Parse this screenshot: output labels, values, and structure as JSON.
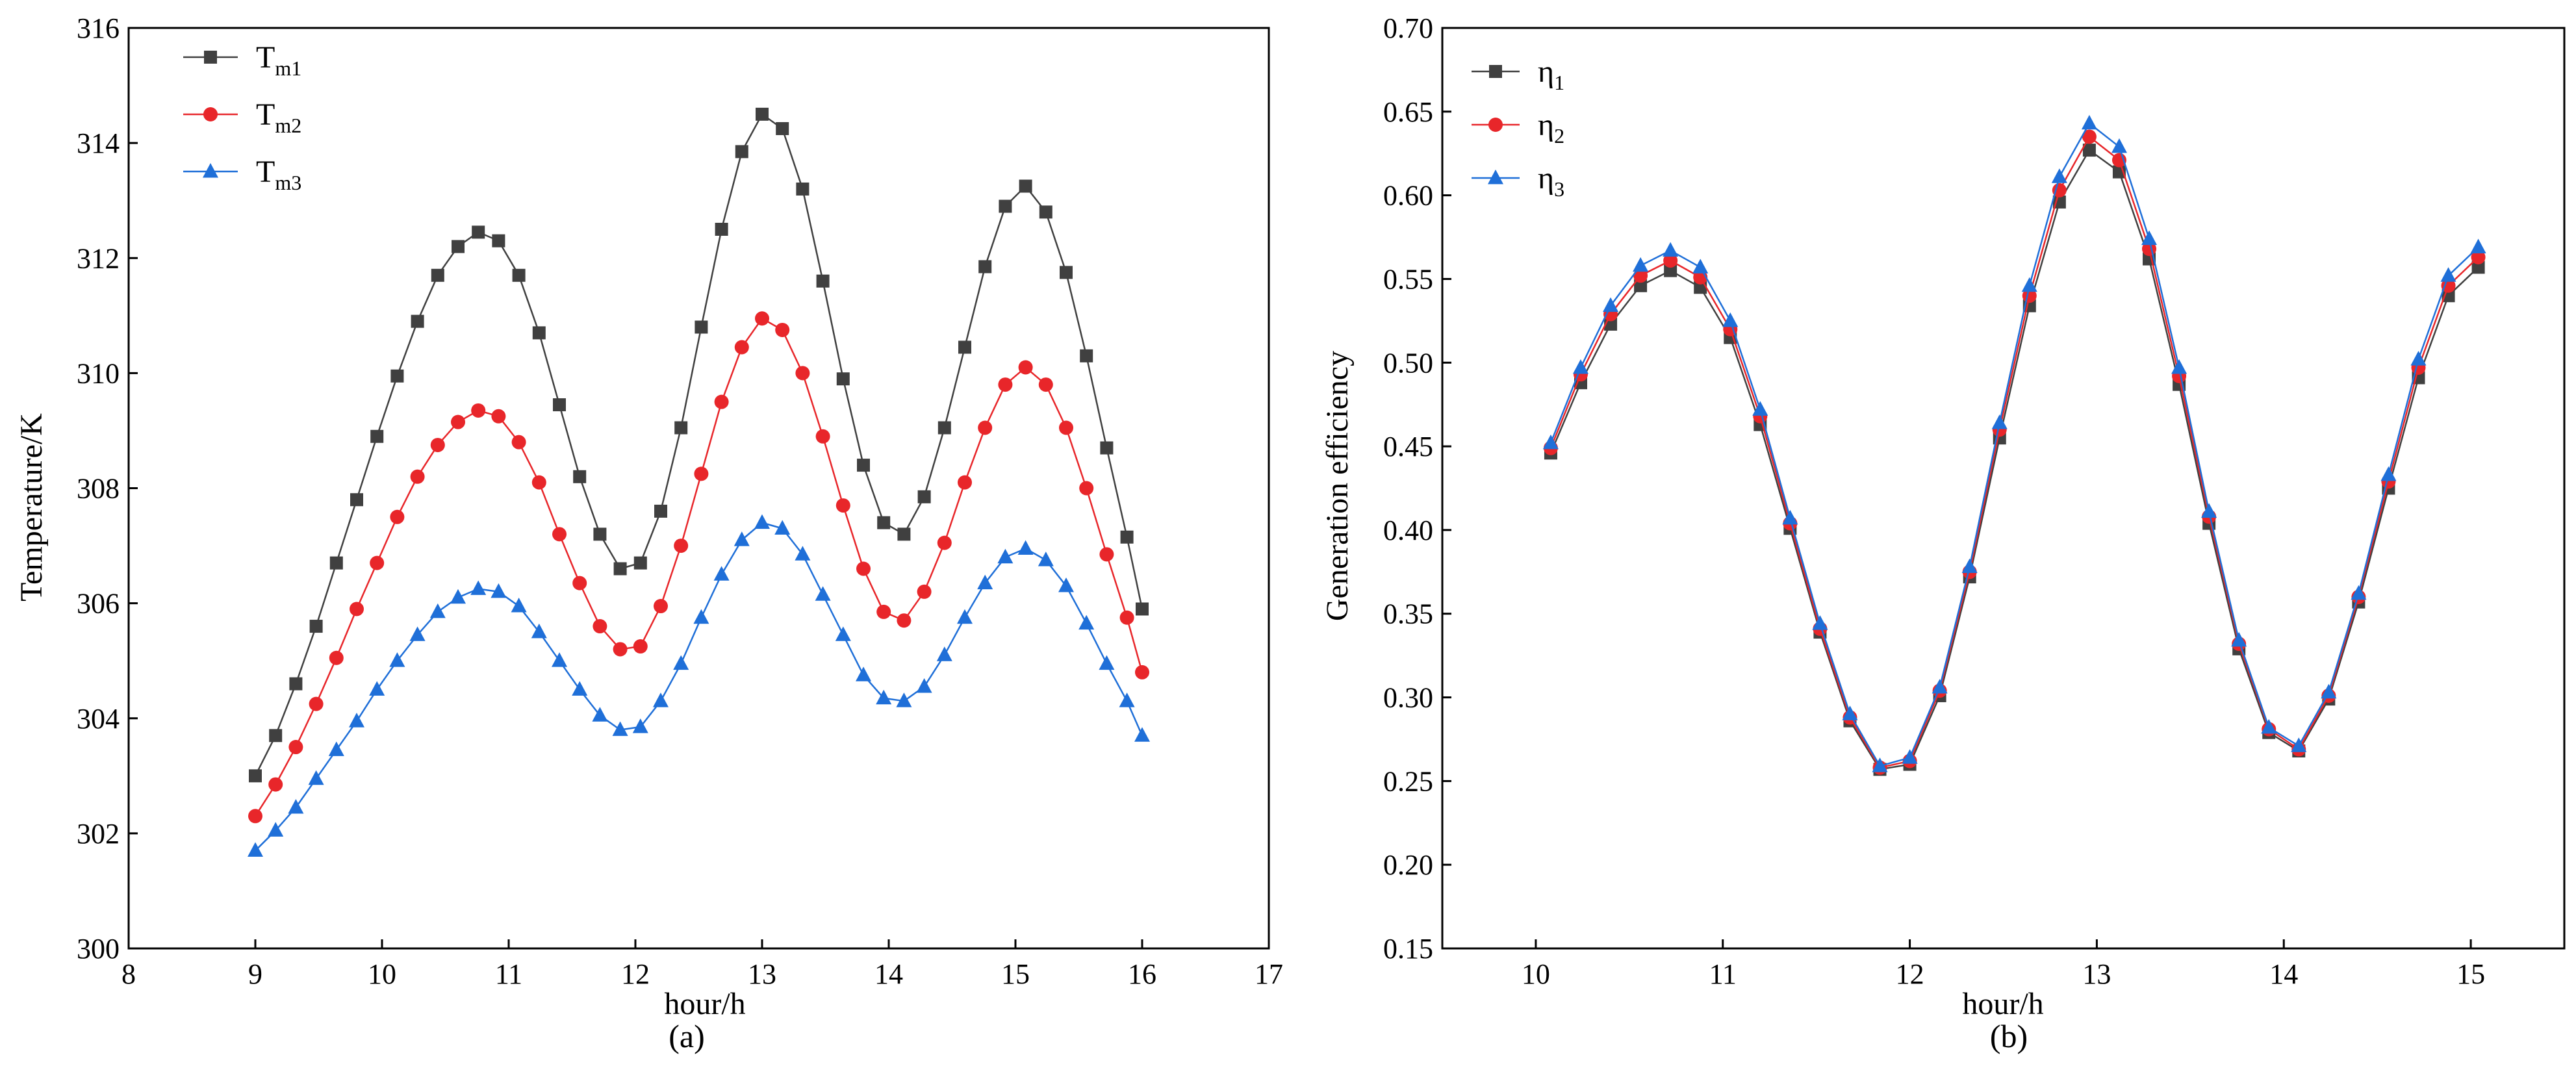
{
  "chart_data": [
    {
      "type": "line",
      "caption": "(a)",
      "xlabel": "hour/h",
      "ylabel": "Temperature/K",
      "xlim": [
        8,
        17
      ],
      "ylim": [
        300,
        316
      ],
      "xticks": [
        8,
        9,
        10,
        11,
        12,
        13,
        14,
        15,
        16,
        17
      ],
      "yticks": [
        300,
        302,
        304,
        306,
        308,
        310,
        312,
        314,
        316
      ],
      "legend_position": "top-left",
      "x": [
        9.0,
        9.16,
        9.32,
        9.48,
        9.64,
        9.8,
        9.96,
        10.12,
        10.28,
        10.44,
        10.6,
        10.76,
        10.92,
        11.08,
        11.24,
        11.4,
        11.56,
        11.72,
        11.88,
        12.04,
        12.2,
        12.36,
        12.52,
        12.68,
        12.84,
        13.0,
        13.16,
        13.32,
        13.48,
        13.64,
        13.8,
        13.96,
        14.12,
        14.28,
        14.44,
        14.6,
        14.76,
        14.92,
        15.08,
        15.24,
        15.4,
        15.56,
        15.72,
        15.88,
        16.0
      ],
      "series": [
        {
          "name": "Tm1",
          "base": "T",
          "sub": "m1",
          "color": "#404040",
          "marker": "square",
          "values": [
            303.0,
            303.7,
            304.6,
            305.6,
            306.7,
            307.8,
            308.9,
            309.95,
            310.9,
            311.7,
            312.2,
            312.45,
            312.3,
            311.7,
            310.7,
            309.45,
            308.2,
            307.2,
            306.6,
            306.7,
            307.6,
            309.05,
            310.8,
            312.5,
            313.85,
            314.5,
            314.25,
            313.2,
            311.6,
            309.9,
            308.4,
            307.4,
            307.2,
            307.85,
            309.05,
            310.45,
            311.85,
            312.9,
            313.25,
            312.8,
            311.75,
            310.3,
            308.7,
            307.15,
            305.9
          ]
        },
        {
          "name": "Tm2",
          "base": "T",
          "sub": "m2",
          "color": "#e8262a",
          "marker": "circle",
          "values": [
            302.3,
            302.85,
            303.5,
            304.25,
            305.05,
            305.9,
            306.7,
            307.5,
            308.2,
            308.75,
            309.15,
            309.35,
            309.25,
            308.8,
            308.1,
            307.2,
            306.35,
            305.6,
            305.2,
            305.25,
            305.95,
            307.0,
            308.25,
            309.5,
            310.45,
            310.95,
            310.75,
            310.0,
            308.9,
            307.7,
            306.6,
            305.85,
            305.7,
            306.2,
            307.05,
            308.1,
            309.05,
            309.8,
            310.1,
            309.8,
            309.05,
            308.0,
            306.85,
            305.75,
            304.8
          ]
        },
        {
          "name": "Tm3",
          "base": "T",
          "sub": "m3",
          "color": "#1f6fd8",
          "marker": "triangle",
          "values": [
            301.7,
            302.05,
            302.45,
            302.95,
            303.45,
            303.95,
            304.5,
            305.0,
            305.45,
            305.85,
            306.1,
            306.25,
            306.2,
            305.95,
            305.5,
            305.0,
            304.5,
            304.05,
            303.8,
            303.85,
            304.3,
            304.95,
            305.75,
            306.5,
            307.1,
            307.4,
            307.3,
            306.85,
            306.15,
            305.45,
            304.75,
            304.35,
            304.3,
            304.55,
            305.1,
            305.75,
            306.35,
            306.8,
            306.95,
            306.75,
            306.3,
            305.65,
            304.95,
            304.3,
            303.7
          ]
        }
      ]
    },
    {
      "type": "line",
      "caption": "(b)",
      "xlabel": "hour/h",
      "ylabel": "Generation efficiency",
      "xlim": [
        9.5,
        15.5
      ],
      "ylim": [
        0.15,
        0.7
      ],
      "xticks": [
        10,
        11,
        12,
        13,
        14,
        15
      ],
      "yticks": [
        0.15,
        0.2,
        0.25,
        0.3,
        0.35,
        0.4,
        0.45,
        0.5,
        0.55,
        0.6,
        0.65,
        0.7
      ],
      "ytick_labels": [
        "0.15",
        "0.20",
        "0.25",
        "0.30",
        "0.35",
        "0.40",
        "0.45",
        "0.50",
        "0.55",
        "0.60",
        "0.65",
        "0.70"
      ],
      "legend_position": "top-left",
      "x": [
        10.08,
        10.24,
        10.4,
        10.56,
        10.72,
        10.88,
        11.04,
        11.2,
        11.36,
        11.52,
        11.68,
        11.84,
        12.0,
        12.16,
        12.32,
        12.48,
        12.64,
        12.8,
        12.96,
        13.12,
        13.28,
        13.44,
        13.6,
        13.76,
        13.92,
        14.08,
        14.24,
        14.4,
        14.56,
        14.72,
        14.88,
        15.04
      ],
      "series": [
        {
          "name": "η1",
          "base": "η",
          "sub": "1",
          "color": "#404040",
          "marker": "square",
          "values": [
            0.446,
            0.488,
            0.523,
            0.546,
            0.555,
            0.545,
            0.515,
            0.463,
            0.401,
            0.339,
            0.286,
            0.257,
            0.26,
            0.301,
            0.372,
            0.455,
            0.534,
            0.596,
            0.627,
            0.614,
            0.562,
            0.487,
            0.404,
            0.329,
            0.279,
            0.268,
            0.299,
            0.357,
            0.425,
            0.491,
            0.54,
            0.557
          ]
        },
        {
          "name": "η2",
          "base": "η",
          "sub": "2",
          "color": "#e8262a",
          "marker": "circle",
          "values": [
            0.449,
            0.493,
            0.529,
            0.552,
            0.561,
            0.551,
            0.52,
            0.468,
            0.404,
            0.341,
            0.288,
            0.258,
            0.262,
            0.304,
            0.375,
            0.46,
            0.54,
            0.603,
            0.635,
            0.621,
            0.568,
            0.492,
            0.408,
            0.332,
            0.281,
            0.269,
            0.301,
            0.36,
            0.429,
            0.497,
            0.546,
            0.563
          ]
        },
        {
          "name": "η3",
          "base": "η",
          "sub": "3",
          "color": "#1f6fd8",
          "marker": "triangle",
          "values": [
            0.452,
            0.497,
            0.534,
            0.558,
            0.567,
            0.557,
            0.525,
            0.472,
            0.407,
            0.344,
            0.29,
            0.259,
            0.264,
            0.306,
            0.378,
            0.464,
            0.546,
            0.611,
            0.643,
            0.629,
            0.574,
            0.497,
            0.411,
            0.334,
            0.282,
            0.271,
            0.303,
            0.362,
            0.433,
            0.502,
            0.552,
            0.569
          ]
        }
      ]
    }
  ]
}
